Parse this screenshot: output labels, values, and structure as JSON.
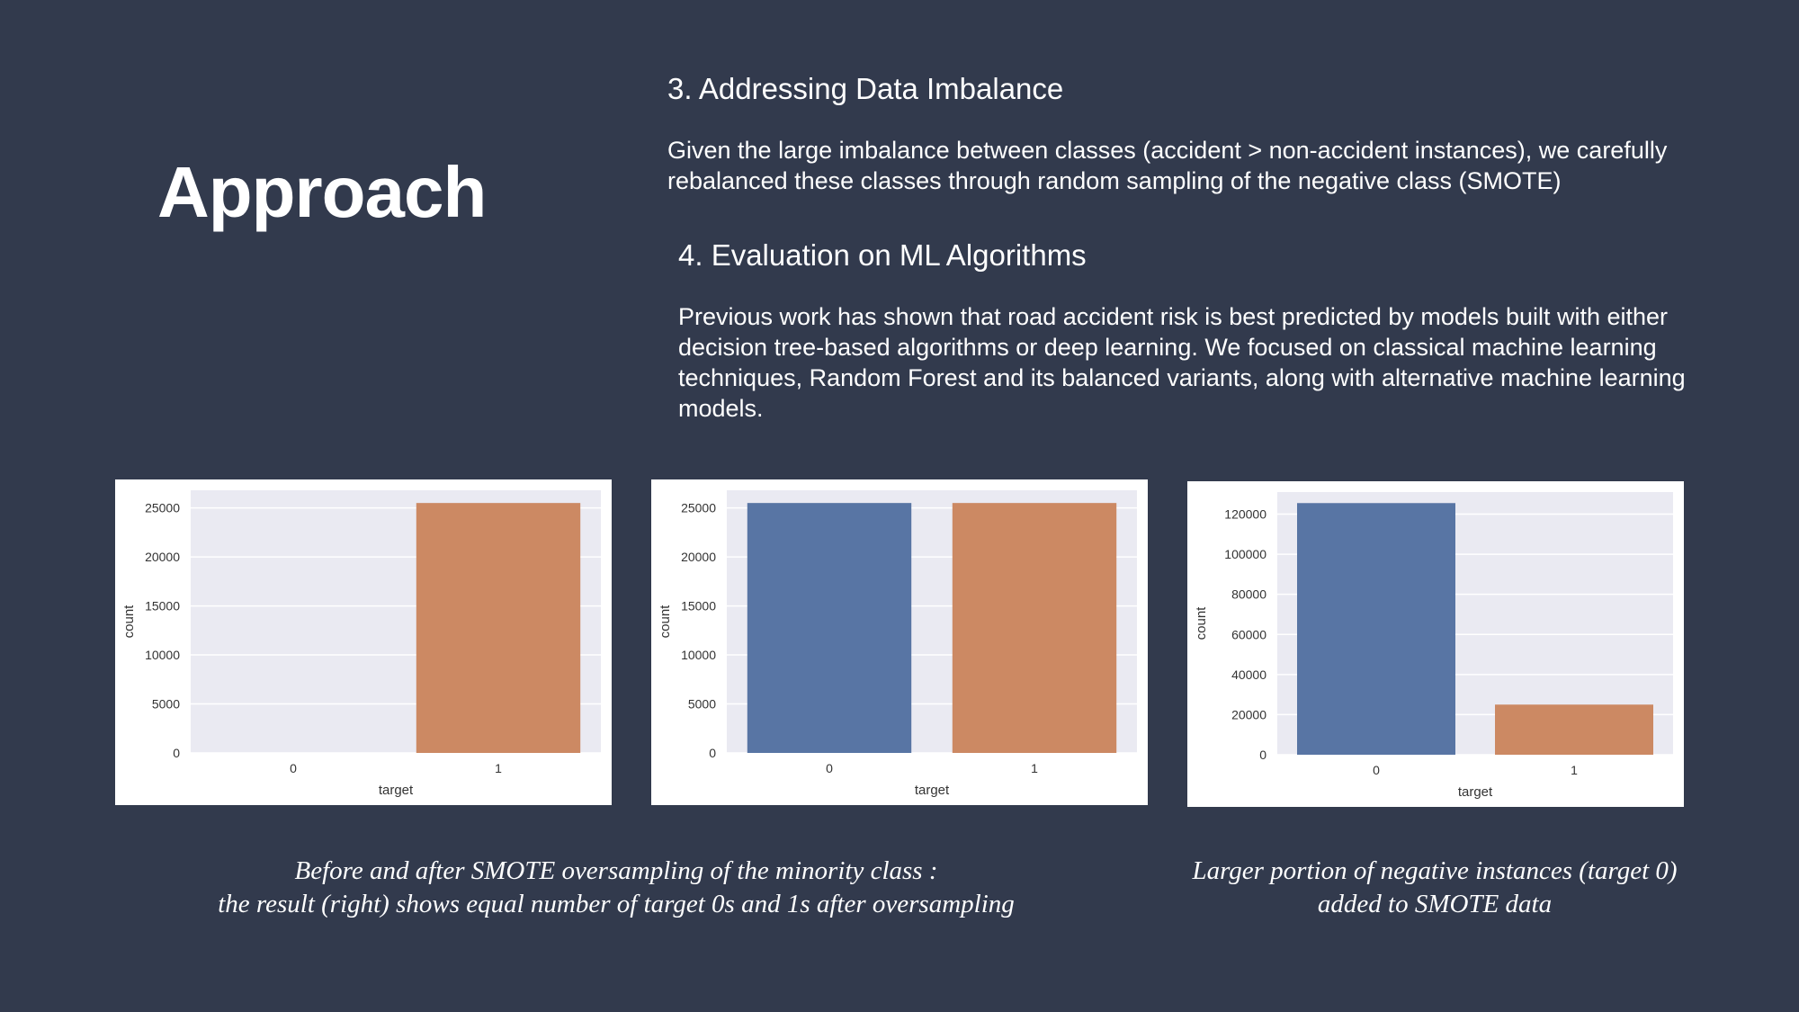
{
  "slide": {
    "title": "Approach",
    "sections": [
      {
        "heading": "3. Addressing Data Imbalance",
        "body": "Given the large imbalance between classes (accident > non-accident instances), we carefully rebalanced these classes through random sampling of the negative class (SMOTE)"
      },
      {
        "heading": "4. Evaluation on ML Algorithms",
        "body": "Previous work has shown that road accident risk is best predicted by models built with either decision tree-based algorithms or deep learning. We focused on classical machine learning techniques, Random Forest and its balanced variants, along with alternative machine learning models."
      }
    ],
    "captions": [
      {
        "lines": [
          "Before and after SMOTE oversampling of the minority class :",
          "the result (right) shows equal number of target 0s and 1s after oversampling"
        ]
      },
      {
        "lines": [
          "Larger portion of negative instances (target 0)",
          "added to SMOTE data"
        ]
      }
    ]
  },
  "colors": {
    "background": "#323a4d",
    "plot_background": "#eaeaf2",
    "bar_class_0": "#5875a4",
    "bar_class_1": "#cc8963"
  },
  "chart_data": [
    {
      "type": "bar",
      "categories": [
        "0",
        "1"
      ],
      "values": [
        0,
        25500
      ],
      "xlabel": "target",
      "ylabel": "count",
      "ylim": [
        0,
        26800
      ],
      "yticks": [
        0,
        5000,
        10000,
        15000,
        20000,
        25000
      ],
      "grid": true
    },
    {
      "type": "bar",
      "categories": [
        "0",
        "1"
      ],
      "values": [
        25500,
        25500
      ],
      "xlabel": "target",
      "ylabel": "count",
      "ylim": [
        0,
        26800
      ],
      "yticks": [
        0,
        5000,
        10000,
        15000,
        20000,
        25000
      ],
      "grid": true
    },
    {
      "type": "bar",
      "categories": [
        "0",
        "1"
      ],
      "values": [
        125500,
        25000
      ],
      "xlabel": "target",
      "ylabel": "count",
      "ylim": [
        0,
        131000
      ],
      "yticks": [
        0,
        20000,
        40000,
        60000,
        80000,
        100000,
        120000
      ],
      "grid": true
    }
  ]
}
